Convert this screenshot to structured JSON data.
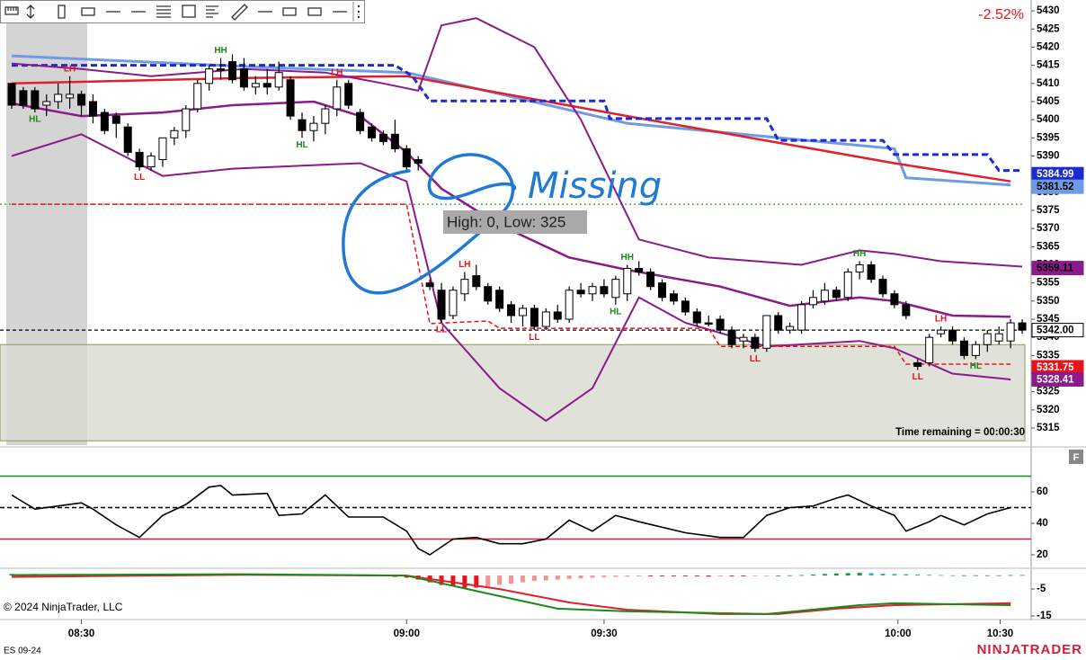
{
  "chart_data": [
    {
      "type": "candlestick",
      "change_label": "-2.52%",
      "info_box": "High: 0, Low: 325",
      "time_remaining": "Time remaining = 00:00:30",
      "handwritten_note": "Missing",
      "copyright": "© 2024 NinjaTrader, LLC",
      "ylim": [
        5310.3,
        5433
      ],
      "yticks": [
        5315,
        5320,
        5325,
        5330,
        5335,
        5340,
        5345,
        5350,
        5355,
        5360,
        5365,
        5370,
        5375,
        5380,
        5385,
        5390,
        5395,
        5400,
        5405,
        5410,
        5415,
        5420,
        5425,
        5430
      ],
      "xticks": [
        {
          "value": 6,
          "label": "08:30"
        },
        {
          "value": 34,
          "label": "09:00"
        },
        {
          "value": 51,
          "label": "09:30"
        },
        {
          "value": 76.3,
          "label": "10:00"
        },
        {
          "value": 85.1,
          "label": "10:30"
        }
      ],
      "open": [
        5410,
        5408,
        5408,
        5404,
        5405,
        5406,
        5407,
        5405,
        5402,
        5401,
        5398,
        5391,
        5387,
        5389,
        5395,
        5397,
        5403,
        5410,
        5414,
        5416,
        5414,
        5409,
        5410,
        5409,
        5411,
        5400,
        5397,
        5399,
        5403,
        5410,
        5402,
        5398,
        5396,
        5396,
        5392,
        5389,
        5355,
        5353,
        5346,
        5352,
        5357,
        5354,
        5353,
        5349,
        5346,
        5348,
        5343,
        5347,
        5345,
        5353,
        5352,
        5354,
        5351,
        5352,
        5359,
        5358,
        5355,
        5352,
        5350,
        5347,
        5344,
        5345,
        5342,
        5339,
        5340,
        5337,
        5346,
        5342,
        5342,
        5349,
        5350,
        5353,
        5351,
        5358,
        5360,
        5356,
        5352,
        5349,
        5333,
        5333,
        5341,
        5342,
        5339,
        5335,
        5338,
        5339,
        5339,
        5344
      ],
      "high": [
        5410,
        5409,
        5409,
        5407,
        5410,
        5412,
        5408,
        5407,
        5403,
        5402,
        5399,
        5392,
        5391,
        5395,
        5398,
        5404,
        5411,
        5415,
        5417,
        5418,
        5417,
        5412,
        5414,
        5416,
        5412,
        5402,
        5401,
        5404,
        5411,
        5411,
        5403,
        5399,
        5397,
        5400,
        5393,
        5390,
        5356,
        5355,
        5354,
        5358,
        5360,
        5355,
        5354,
        5350,
        5349,
        5349,
        5348,
        5349,
        5354,
        5355,
        5355,
        5356,
        5357,
        5360,
        5361,
        5359,
        5356,
        5353,
        5351,
        5348,
        5346,
        5346,
        5343,
        5341,
        5341,
        5346,
        5347,
        5344,
        5350,
        5353,
        5355,
        5354,
        5359,
        5361,
        5361,
        5357,
        5353,
        5350,
        5334,
        5341,
        5343,
        5343,
        5340,
        5339,
        5342,
        5343,
        5345,
        5345
      ],
      "low": [
        5403,
        5403,
        5402,
        5401,
        5403,
        5403,
        5401,
        5399,
        5396,
        5395,
        5390,
        5386,
        5386,
        5387,
        5393,
        5395,
        5402,
        5408,
        5411,
        5410,
        5408,
        5407,
        5407,
        5408,
        5400,
        5395,
        5394,
        5396,
        5401,
        5403,
        5396,
        5394,
        5393,
        5391,
        5386,
        5386,
        5353,
        5344,
        5345,
        5350,
        5353,
        5349,
        5347,
        5344,
        5343,
        5342,
        5342,
        5344,
        5344,
        5351,
        5350,
        5351,
        5349,
        5350,
        5357,
        5353,
        5350,
        5349,
        5346,
        5343,
        5343,
        5341,
        5337,
        5337,
        5336,
        5336,
        5341,
        5341,
        5341,
        5348,
        5349,
        5350,
        5350,
        5356,
        5355,
        5351,
        5348,
        5345,
        5331,
        5332,
        5340,
        5338,
        5334,
        5334,
        5336,
        5338,
        5337,
        5341
      ],
      "close": [
        5404,
        5404,
        5403,
        5405,
        5407,
        5407,
        5404,
        5401,
        5397,
        5399,
        5391,
        5387,
        5390,
        5395,
        5397,
        5403,
        5410,
        5414,
        5414,
        5411,
        5409,
        5410,
        5409,
        5413,
        5401,
        5397,
        5399,
        5403,
        5409,
        5404,
        5397,
        5395,
        5394,
        5392,
        5387,
        5388,
        5354,
        5345,
        5353,
        5356,
        5354,
        5350,
        5348,
        5346,
        5348,
        5343,
        5347,
        5345,
        5353,
        5352,
        5354,
        5352,
        5356,
        5359,
        5358,
        5354,
        5351,
        5350,
        5347,
        5344,
        5344,
        5342,
        5338,
        5340,
        5337,
        5346,
        5342,
        5343,
        5349,
        5351,
        5353,
        5351,
        5358,
        5360,
        5356,
        5352,
        5349,
        5346,
        5332,
        5340,
        5342,
        5339,
        5335,
        5338,
        5341,
        5341,
        5344,
        5342
      ],
      "lines": [
        {
          "color": "#6f9be6",
          "width": 3,
          "x": [
            0,
            22,
            34,
            53,
            76,
            77,
            86
          ],
          "values": [
            5417.6,
            5414.4,
            5413,
            5399,
            5392,
            5384,
            5382
          ]
        },
        {
          "color": "#e0202c",
          "width": 2.5,
          "x": [
            0,
            20,
            34,
            53,
            76,
            86
          ],
          "values": [
            5410,
            5411.5,
            5412,
            5401,
            5388,
            5383
          ]
        },
        {
          "color": "#1a2bd1",
          "width": 3,
          "dash": "7,4",
          "x": [
            0,
            33,
            34.5,
            36,
            51,
            51.5,
            65,
            66,
            75,
            76,
            84,
            85,
            87
          ],
          "values": [
            5415,
            5415,
            5412,
            5405.2,
            5405.2,
            5400.3,
            5400.3,
            5394.3,
            5394.3,
            5390.4,
            5390.4,
            5386,
            5386
          ]
        },
        {
          "color": "#8b1a8b",
          "width": 2,
          "x": [
            0,
            6,
            12,
            20,
            27,
            32,
            35,
            37,
            40,
            45,
            49,
            54,
            60,
            68,
            73,
            76,
            80,
            87
          ],
          "values": [
            5415.5,
            5414,
            5412,
            5414,
            5413,
            5410,
            5408,
            5426,
            5428,
            5420,
            5400,
            5367,
            5362,
            5360,
            5364,
            5363,
            5361,
            5359.5
          ]
        },
        {
          "color": "#8b1a8b",
          "width": 2.5,
          "x": [
            0,
            6,
            13,
            19,
            26,
            30,
            34,
            37,
            42,
            48,
            53,
            61,
            67,
            73,
            76,
            81,
            86
          ],
          "values": [
            5404.5,
            5401,
            5402,
            5404,
            5405,
            5401,
            5391,
            5381,
            5371,
            5362,
            5358.6,
            5354,
            5348.7,
            5351,
            5350,
            5346,
            5345.7
          ]
        },
        {
          "color": "#8b1a8b",
          "width": 2,
          "x": [
            0,
            6,
            13,
            19,
            30,
            34,
            37,
            42,
            46,
            50,
            54,
            58,
            65,
            73,
            76,
            81,
            86
          ],
          "values": [
            5390,
            5396,
            5384.5,
            5386.5,
            5388,
            5383,
            5344,
            5326,
            5317,
            5326,
            5351,
            5344,
            5337.5,
            5339,
            5337,
            5330,
            5328.4
          ]
        },
        {
          "color": "#e8121b",
          "width": 1.5,
          "dash": "5,3",
          "x": [
            0,
            34,
            36,
            41,
            42,
            60,
            61,
            76,
            77,
            86
          ],
          "values": [
            5376.7,
            5376.7,
            5343.8,
            5344.5,
            5342.5,
            5342.5,
            5337.5,
            5337.5,
            5332.6,
            5332.6
          ]
        }
      ],
      "levels": [
        {
          "value": 5342,
          "color": "#000000",
          "dash": "4,3"
        },
        {
          "value": 5376.7,
          "color": "#2e9b2e",
          "dash": "2,3"
        }
      ],
      "zone": [
        5338,
        5311.5
      ],
      "zone_color": "#d8dbd0",
      "swing_labels": [
        {
          "text": "LH",
          "bar": 5,
          "color": "#e8121b"
        },
        {
          "text": "HL",
          "bar": 2,
          "color": "#1a8a1a"
        },
        {
          "text": "LL",
          "bar": 11,
          "color": "#e8121b"
        },
        {
          "text": "HH",
          "bar": 18,
          "color": "#1a8a1a"
        },
        {
          "text": "LH",
          "bar": 28,
          "color": "#e8121b"
        },
        {
          "text": "HL",
          "bar": 25,
          "color": "#1a8a1a"
        },
        {
          "text": "LH",
          "bar": 39,
          "color": "#e8121b"
        },
        {
          "text": "LL",
          "bar": 37,
          "color": "#e8121b"
        },
        {
          "text": "LL",
          "bar": 45,
          "color": "#e8121b"
        },
        {
          "text": "HH",
          "bar": 53,
          "color": "#1a8a1a"
        },
        {
          "text": "HL",
          "bar": 52,
          "color": "#1a8a1a"
        },
        {
          "text": "LL",
          "bar": 64,
          "color": "#e8121b"
        },
        {
          "text": "HH",
          "bar": 73,
          "color": "#1a8a1a"
        },
        {
          "text": "LL",
          "bar": 78,
          "color": "#e8121b"
        },
        {
          "text": "LH",
          "bar": 80,
          "color": "#e8121b"
        },
        {
          "text": "HL",
          "bar": 83,
          "color": "#1a8a1a"
        }
      ],
      "markers": [
        {
          "value": 5384.99,
          "label": "5384.99",
          "bg": "#1a2bd1",
          "fg": "#ffffff"
        },
        {
          "value": 5381.52,
          "label": "5381.52",
          "bg": "#6f9be6",
          "fg": "#000000"
        },
        {
          "value": 5359.11,
          "label": "5359.11",
          "bg": "#8b1a8b",
          "fg": "#000000"
        },
        {
          "value": 5342,
          "label": "5342.00",
          "bg": "#ffffff",
          "fg": "#000000"
        },
        {
          "value": 5331.75,
          "label": "5331.75",
          "bg": "#e8121b",
          "fg": "#ffffff"
        },
        {
          "value": 5328.41,
          "label": "5328.41",
          "bg": "#8b1a8b",
          "fg": "#ffffff"
        }
      ]
    },
    {
      "type": "line",
      "ylim": [
        11.4,
        84
      ],
      "yticks": [
        20,
        40,
        60
      ],
      "levels": [
        {
          "value": 70,
          "color": "#1a8a1a"
        },
        {
          "value": 50,
          "color": "#000000",
          "dash": "5,3"
        },
        {
          "value": 30,
          "color": "#d0203a"
        }
      ],
      "color": "#000000",
      "x": [
        0,
        2,
        4,
        6,
        7,
        9,
        11,
        13,
        15,
        17,
        18,
        19,
        22,
        23,
        25,
        27,
        29,
        32,
        34,
        35,
        36,
        38,
        40,
        42,
        44,
        46,
        48,
        50,
        52,
        54,
        58,
        61,
        63,
        65,
        67,
        69,
        71,
        72,
        74,
        76,
        77,
        79,
        80,
        82,
        84,
        86
      ],
      "values": [
        58,
        49,
        51,
        53,
        49,
        39,
        31,
        45,
        52,
        63,
        64,
        58,
        59,
        45,
        46,
        58,
        44,
        44,
        35,
        24,
        20,
        30,
        31,
        27,
        27,
        30,
        42,
        35,
        45,
        41,
        34,
        31,
        31,
        45,
        50,
        51,
        56,
        58,
        51,
        45,
        35,
        41,
        45,
        39,
        46,
        50
      ]
    },
    {
      "type": "macd",
      "ylim": [
        -16,
        2.7
      ],
      "yticks": [
        -5,
        -15
      ],
      "histogram": [
        0.6,
        0.5,
        0.6,
        0.5,
        0.4,
        0.4,
        0.3,
        0.3,
        0.2,
        0.2,
        0.1,
        0.1,
        0.1,
        0.1,
        0.1,
        0.2,
        0.3,
        0.3,
        0.4,
        0.4,
        0.4,
        0.3,
        0.3,
        0.2,
        0.1,
        0.1,
        0.1,
        0.1,
        0.1,
        0.1,
        -0.1,
        -0.2,
        -0.3,
        -0.5,
        -0.8,
        -1.5,
        -2.5,
        -3.5,
        -4,
        -4.5,
        -4.5,
        -4,
        -3.5,
        -3,
        -2.5,
        -2,
        -1.8,
        -1.5,
        -1.2,
        -1,
        -0.8,
        -0.6,
        -0.5,
        -0.4,
        -0.3,
        -0.3,
        -0.3,
        -0.3,
        -0.3,
        -0.3,
        -0.4,
        -0.3,
        -0.3,
        -0.3,
        -0.2,
        -0.1,
        0,
        0.1,
        0.2,
        0.4,
        0.6,
        0.8,
        0.9,
        1,
        0.9,
        0.7,
        0.6,
        0.5,
        0.4,
        0.3,
        0.2,
        0.1,
        0.1,
        0.1,
        0.1,
        0.1,
        0.2,
        0.2
      ],
      "histogram_colors": {
        "pos_up": "#1a9b3a",
        "pos_down": "#3fb6b0",
        "neg_down": "#e8121b",
        "neg_up": "#f29494"
      },
      "lines": [
        {
          "color": "#e0202c",
          "x": [
            0,
            20,
            34,
            42,
            48,
            53,
            61,
            66,
            71,
            76,
            86
          ],
          "values": [
            -0.5,
            0.3,
            0,
            -5,
            -10,
            -12.7,
            -14.3,
            -14.3,
            -12.3,
            -11,
            -10.3
          ]
        },
        {
          "color": "#1a8a1a",
          "x": [
            0,
            20,
            34,
            41,
            47,
            53,
            65,
            73,
            76,
            86
          ],
          "values": [
            0.2,
            0.5,
            0,
            -6.7,
            -12.3,
            -13.3,
            -14.3,
            -11,
            -10.3,
            -11
          ]
        }
      ]
    }
  ],
  "instrument": "ES 09-24",
  "brand": "NINJATRADER"
}
